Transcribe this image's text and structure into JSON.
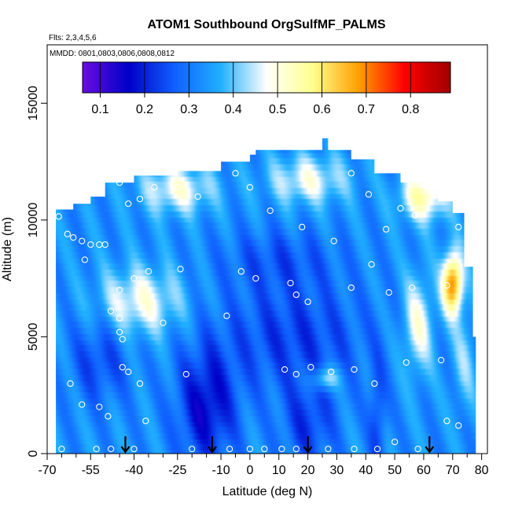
{
  "chart_data": {
    "type": "heatmap",
    "title": "ATOM1 Southbound OrgSulfMF_PALMS",
    "subtitle_flights": "Flts: 2,3,4,5,6",
    "subtitle_dates": "MMDD: 0801,0803,0806,0808,0812",
    "xlabel": "Latitude (deg N)",
    "ylabel": "Altitude (m)",
    "xlim": [
      -70,
      82
    ],
    "ylim": [
      0,
      17500
    ],
    "x_ticks": [
      -70,
      -55,
      -40,
      -25,
      -10,
      0,
      10,
      20,
      30,
      40,
      50,
      60,
      70,
      80
    ],
    "x_tick_labels": [
      "-70",
      "-55",
      "-40",
      "-25",
      "-10",
      "0",
      "10",
      "20",
      "30",
      "40",
      "50",
      "60",
      "70",
      "80"
    ],
    "x_minor_ticks": [
      -65,
      -60,
      -50,
      -45,
      -35,
      -30,
      -20,
      -15,
      -5,
      5,
      15,
      25,
      35,
      45,
      55,
      65,
      75
    ],
    "y_ticks": [
      0,
      5000,
      10000,
      15000
    ],
    "y_tick_labels": [
      "0",
      "5000",
      "10000",
      "15000"
    ],
    "colorbar": {
      "min": 0.06,
      "max": 0.89,
      "ticks": [
        0.1,
        0.2,
        0.3,
        0.4,
        0.5,
        0.6,
        0.7,
        0.8
      ],
      "tick_labels": [
        "0.1",
        "0.2",
        "0.3",
        "0.4",
        "0.5",
        "0.6",
        "0.7",
        "0.8"
      ],
      "colors": [
        "#6a0de0",
        "#0000c8",
        "#1060ff",
        "#20b0ff",
        "#ffffff",
        "#ffff90",
        "#ffa000",
        "#ff0000",
        "#a00000"
      ]
    },
    "flight_markers_lat": [
      -43,
      -13,
      20,
      62
    ],
    "sample_points": [
      [
        -66,
        10150
      ],
      [
        -63,
        9400
      ],
      [
        -61,
        9250
      ],
      [
        -58,
        9100
      ],
      [
        -55,
        8950
      ],
      [
        -52,
        8950
      ],
      [
        -57,
        8300
      ],
      [
        -50,
        8950
      ],
      [
        -45,
        11600
      ],
      [
        -42,
        10700
      ],
      [
        -38,
        10900
      ],
      [
        -33,
        11400
      ],
      [
        -25,
        11400
      ],
      [
        -18,
        11000
      ],
      [
        -5,
        12000
      ],
      [
        0,
        11400
      ],
      [
        7,
        10400
      ],
      [
        18,
        9700
      ],
      [
        29,
        9100
      ],
      [
        35,
        12000
      ],
      [
        41,
        11100
      ],
      [
        47,
        9600
      ],
      [
        52,
        10500
      ],
      [
        57,
        10200
      ],
      [
        -45,
        7000
      ],
      [
        -45,
        5800
      ],
      [
        -48,
        6100
      ],
      [
        -40,
        7500
      ],
      [
        -35,
        7800
      ],
      [
        -24,
        7900
      ],
      [
        -3,
        7800
      ],
      [
        2,
        7500
      ],
      [
        14,
        7300
      ],
      [
        16,
        6800
      ],
      [
        20,
        6500
      ],
      [
        35,
        7100
      ],
      [
        42,
        8100
      ],
      [
        48,
        6900
      ],
      [
        56,
        7100
      ],
      [
        68,
        7200
      ],
      [
        72,
        9700
      ],
      [
        -45,
        5200
      ],
      [
        -44,
        4900
      ],
      [
        -30,
        5600
      ],
      [
        -8,
        5900
      ],
      [
        12,
        3600
      ],
      [
        16,
        3400
      ],
      [
        21,
        3700
      ],
      [
        28,
        3500
      ],
      [
        36,
        3600
      ],
      [
        43,
        3000
      ],
      [
        54,
        3900
      ],
      [
        66,
        4000
      ],
      [
        -44,
        3700
      ],
      [
        -42,
        3500
      ],
      [
        -38,
        3000
      ],
      [
        -22,
        3400
      ],
      [
        -62,
        3000
      ],
      [
        -58,
        2100
      ],
      [
        -52,
        2000
      ],
      [
        -49,
        1600
      ],
      [
        -36,
        1400
      ],
      [
        -65,
        200
      ],
      [
        -53,
        200
      ],
      [
        -48,
        200
      ],
      [
        -40,
        200
      ],
      [
        -20,
        200
      ],
      [
        -7,
        200
      ],
      [
        0,
        200
      ],
      [
        5,
        200
      ],
      [
        11,
        200
      ],
      [
        16,
        200
      ],
      [
        27,
        200
      ],
      [
        36,
        200
      ],
      [
        44,
        200
      ],
      [
        50,
        500
      ],
      [
        58,
        200
      ],
      [
        68,
        1400
      ],
      [
        72,
        1200
      ]
    ]
  }
}
